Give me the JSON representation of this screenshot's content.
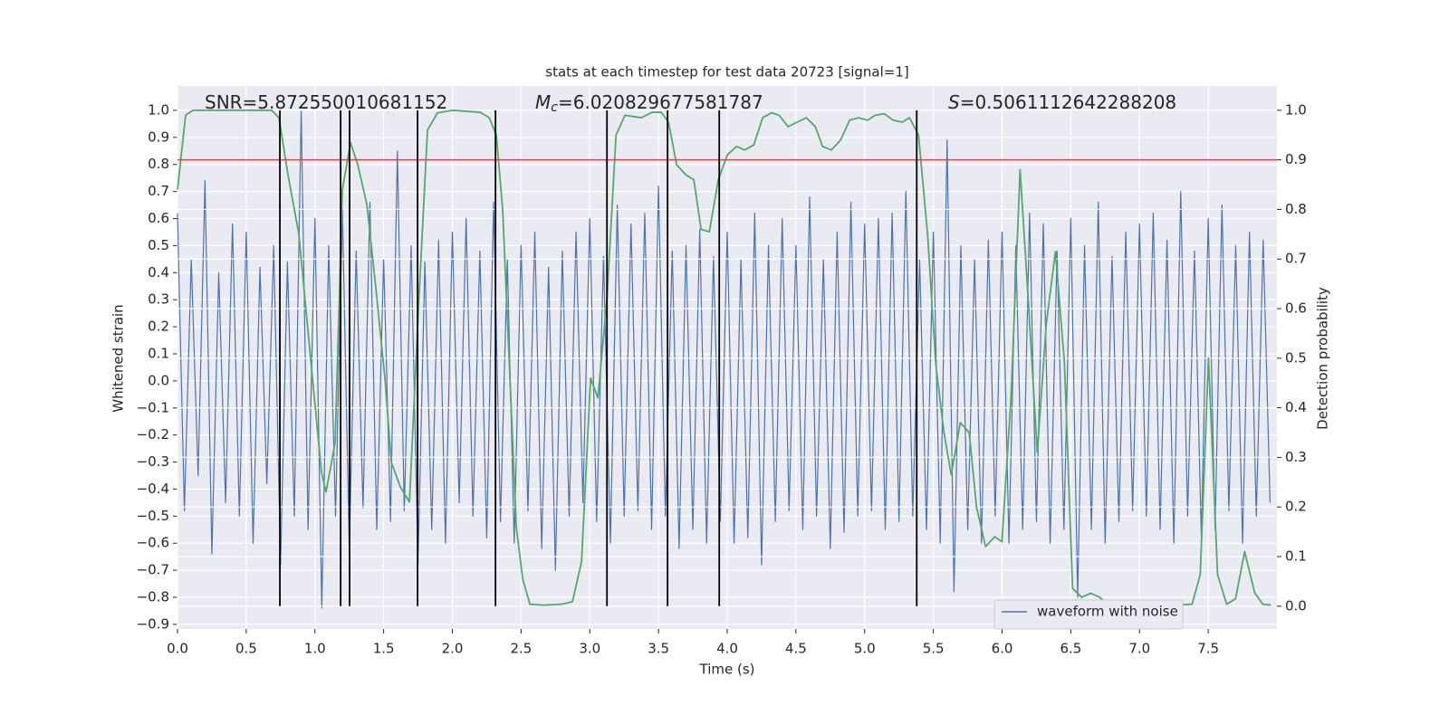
{
  "chart_data": {
    "type": "line",
    "title": "stats at each timestep for test data 20723 [signal=1]",
    "xlabel": "Time (s)",
    "ylabel": "Whitened strain",
    "y2label": "Detection probability",
    "annotations": [
      {
        "text": "SNR=5.872550010681152"
      },
      {
        "symbol": "M",
        "subscript": "c",
        "text": "=6.020829677581787"
      },
      {
        "symbol": "S",
        "text": "=0.5061112642288208"
      }
    ],
    "xlim": [
      0,
      8.0
    ],
    "ylim": [
      -0.917,
      1.09
    ],
    "y2lim": [
      -0.046,
      1.049
    ],
    "xticks": [
      {
        "value": 0,
        "label": "0.0"
      },
      0.5,
      {
        "value": 1,
        "label": "1.0"
      },
      1.5,
      {
        "value": 2,
        "label": "2.0"
      },
      2.5,
      {
        "value": 3,
        "label": "3.0"
      },
      3.5,
      {
        "value": 4,
        "label": "4.0"
      },
      4.5,
      {
        "value": 5,
        "label": "5.0"
      },
      5.5,
      {
        "value": 6,
        "label": "6.0"
      },
      6.5,
      {
        "value": 7,
        "label": "7.0"
      },
      7.5
    ],
    "yticks": [
      {
        "value": -0.9,
        "label": "−0.9"
      },
      {
        "value": -0.8,
        "label": "−0.8"
      },
      {
        "value": -0.7,
        "label": "−0.7"
      },
      {
        "value": -0.6,
        "label": "−0.6"
      },
      {
        "value": -0.5,
        "label": "−0.5"
      },
      {
        "value": -0.4,
        "label": "−0.4"
      },
      {
        "value": -0.3,
        "label": "−0.3"
      },
      {
        "value": -0.2,
        "label": "−0.2"
      },
      {
        "value": -0.1,
        "label": "−0.1"
      },
      {
        "value": 0,
        "label": "0.0"
      },
      0.1,
      0.2,
      0.3,
      0.4,
      0.5,
      0.6,
      0.7,
      0.8,
      0.9,
      {
        "value": 1,
        "label": "1.0"
      }
    ],
    "y2ticks": [
      {
        "value": 0,
        "label": "0.0"
      },
      0.1,
      0.2,
      0.3,
      0.4,
      0.5,
      0.6,
      0.7,
      0.8,
      0.9,
      {
        "value": 1,
        "label": "1.0"
      }
    ],
    "grid": true,
    "legend": "lower right",
    "series": [
      {
        "name": "waveform with noise",
        "color": "#4c72b0",
        "x": [
          0,
          0.05,
          0.1,
          0.15,
          0.2,
          0.25,
          0.3,
          0.35,
          0.4,
          0.45,
          0.5,
          0.55,
          0.6,
          0.65,
          0.7,
          0.75,
          0.8,
          0.85,
          0.9,
          0.95,
          1,
          1.05,
          1.1,
          1.15,
          1.2,
          1.25,
          1.3,
          1.35,
          1.4,
          1.45,
          1.5,
          1.55,
          1.6,
          1.65,
          1.7,
          1.75,
          1.8,
          1.85,
          1.9,
          1.95,
          2,
          2.05,
          2.1,
          2.15,
          2.2,
          2.25,
          2.3,
          2.35,
          2.4,
          2.45,
          2.5,
          2.55,
          2.6,
          2.65,
          2.7,
          2.75,
          2.8,
          2.85,
          2.9,
          2.95,
          3,
          3.05,
          3.1,
          3.15,
          3.2,
          3.25,
          3.3,
          3.35,
          3.4,
          3.45,
          3.5,
          3.55,
          3.6,
          3.65,
          3.7,
          3.75,
          3.8,
          3.85,
          3.9,
          3.95,
          4,
          4.05,
          4.1,
          4.15,
          4.2,
          4.25,
          4.3,
          4.35,
          4.4,
          4.45,
          4.5,
          4.55,
          4.6,
          4.65,
          4.7,
          4.75,
          4.8,
          4.85,
          4.9,
          4.95,
          5,
          5.05,
          5.1,
          5.15,
          5.2,
          5.25,
          5.3,
          5.35,
          5.4,
          5.45,
          5.5,
          5.55,
          5.6,
          5.65,
          5.7,
          5.75,
          5.8,
          5.85,
          5.9,
          5.95,
          6,
          6.05,
          6.1,
          6.15,
          6.2,
          6.25,
          6.3,
          6.35,
          6.4,
          6.45,
          6.5,
          6.55,
          6.6,
          6.65,
          6.7,
          6.75,
          6.8,
          6.85,
          6.9,
          6.95,
          7,
          7.05,
          7.1,
          7.15,
          7.2,
          7.25,
          7.3,
          7.35,
          7.4,
          7.45,
          7.5,
          7.55,
          7.6,
          7.65,
          7.7,
          7.75,
          7.8,
          7.85,
          7.9,
          7.95
        ],
        "values": [
          0.62,
          -0.48,
          0.45,
          -0.35,
          0.74,
          -0.64,
          0.4,
          -0.45,
          0.58,
          -0.5,
          0.55,
          -0.6,
          0.42,
          -0.38,
          0.5,
          -0.68,
          0.44,
          -0.5,
          1.0,
          -0.55,
          0.6,
          -0.84,
          0.5,
          -0.5,
          0.63,
          -0.62,
          0.48,
          -0.47,
          0.66,
          -0.55,
          0.45,
          -0.52,
          0.85,
          -0.48,
          0.5,
          -0.68,
          0.44,
          -0.55,
          0.52,
          -0.6,
          0.55,
          -0.45,
          0.6,
          -0.5,
          0.48,
          -0.58,
          0.66,
          -0.52,
          0.45,
          -0.6,
          0.5,
          -0.48,
          0.55,
          -0.62,
          0.42,
          -0.7,
          0.48,
          -0.5,
          0.55,
          -0.45,
          0.6,
          -0.52,
          0.46,
          -0.6,
          0.65,
          -0.5,
          0.58,
          -0.48,
          0.62,
          -0.55,
          0.72,
          -0.5,
          0.48,
          -0.62,
          0.5,
          -0.55,
          0.56,
          -0.6,
          0.46,
          -0.52,
          0.55,
          -0.6,
          0.45,
          -0.58,
          0.62,
          -0.68,
          0.5,
          -0.52,
          0.6,
          -0.48,
          0.5,
          -0.55,
          0.68,
          -0.5,
          0.45,
          -0.62,
          0.55,
          -0.56,
          0.66,
          -0.5,
          0.58,
          -0.48,
          0.6,
          -0.55,
          0.62,
          -0.52,
          0.7,
          -0.5,
          0.45,
          -0.55,
          0.55,
          -0.6,
          0.89,
          -0.78,
          0.5,
          -0.55,
          0.45,
          -0.6,
          0.52,
          -0.5,
          0.55,
          -0.6,
          0.5,
          -0.55,
          0.62,
          -0.52,
          0.58,
          -0.6,
          0.48,
          -0.55,
          0.6,
          -0.8,
          0.5,
          -0.55,
          0.66,
          -0.6,
          0.46,
          -0.52,
          0.55,
          -0.48,
          0.58,
          -0.5,
          0.62,
          -0.55,
          0.52,
          -0.6,
          0.7,
          -0.5,
          0.48,
          -0.58,
          0.6,
          -0.55,
          0.65,
          -0.48,
          0.5,
          -0.6,
          0.55,
          -0.5,
          0.52,
          -0.45
        ]
      },
      {
        "color": "#55a868",
        "axis": "y2",
        "x": [
          0.0,
          0.059,
          0.112,
          0.686,
          0.738,
          0.804,
          0.883,
          0.982,
          1.048,
          1.081,
          1.147,
          1.2,
          1.259,
          1.312,
          1.378,
          1.444,
          1.509,
          1.556,
          1.622,
          1.688,
          1.753,
          1.819,
          1.892,
          2.004,
          2.202,
          2.268,
          2.32,
          2.366,
          2.419,
          2.465,
          2.512,
          2.564,
          2.663,
          2.795,
          2.874,
          2.94,
          3.006,
          3.059,
          3.125,
          3.191,
          3.256,
          3.375,
          3.454,
          3.52,
          3.573,
          3.632,
          3.698,
          3.757,
          3.81,
          3.87,
          3.935,
          4.001,
          4.067,
          4.127,
          4.193,
          4.258,
          4.324,
          4.377,
          4.443,
          4.509,
          4.575,
          4.641,
          4.694,
          4.759,
          4.825,
          4.891,
          4.957,
          5.023,
          5.076,
          5.142,
          5.208,
          5.274,
          5.326,
          5.392,
          5.458,
          5.517,
          5.577,
          5.63,
          5.696,
          5.761,
          5.814,
          5.88,
          5.946,
          5.999,
          6.065,
          6.131,
          6.19,
          6.256,
          6.322,
          6.388,
          6.454,
          6.513,
          6.579,
          6.645,
          6.711,
          6.763,
          6.882,
          7.014,
          7.146,
          7.277,
          7.383,
          7.442,
          7.502,
          7.568,
          7.634,
          7.699,
          7.765,
          7.838,
          7.897,
          7.956
        ],
        "values": [
          0.84,
          0.99,
          1.0,
          1.0,
          0.985,
          0.87,
          0.75,
          0.46,
          0.27,
          0.23,
          0.33,
          0.84,
          0.935,
          0.89,
          0.81,
          0.64,
          0.46,
          0.29,
          0.24,
          0.21,
          0.6,
          0.96,
          0.995,
          1.0,
          0.996,
          0.985,
          0.95,
          0.8,
          0.46,
          0.16,
          0.055,
          0.004,
          0.002,
          0.004,
          0.009,
          0.09,
          0.46,
          0.42,
          0.62,
          0.95,
          0.99,
          0.985,
          0.996,
          0.996,
          0.976,
          0.89,
          0.87,
          0.86,
          0.76,
          0.755,
          0.86,
          0.91,
          0.927,
          0.92,
          0.93,
          0.985,
          0.995,
          0.99,
          0.967,
          0.976,
          0.985,
          0.967,
          0.927,
          0.92,
          0.94,
          0.98,
          0.985,
          0.98,
          0.99,
          0.993,
          0.98,
          0.976,
          0.985,
          0.95,
          0.75,
          0.49,
          0.35,
          0.265,
          0.37,
          0.35,
          0.2,
          0.12,
          0.14,
          0.13,
          0.42,
          0.88,
          0.62,
          0.31,
          0.57,
          0.715,
          0.49,
          0.036,
          0.018,
          0.026,
          0.018,
          0.004,
          0.002,
          0.004,
          0.004,
          0.002,
          0.004,
          0.064,
          0.5,
          0.064,
          0.004,
          0.015,
          0.11,
          0.027,
          0.004,
          0.002
        ]
      }
    ],
    "threshold": {
      "value": 0.9,
      "axis": "y2",
      "color": "#c44e52"
    },
    "vlines": {
      "x": [
        0.745,
        1.187,
        1.252,
        1.747,
        2.314,
        3.125,
        3.566,
        3.942,
        5.379
      ],
      "ymin": 0,
      "ymax": 1,
      "axis": "y2",
      "color": "#000000"
    }
  }
}
